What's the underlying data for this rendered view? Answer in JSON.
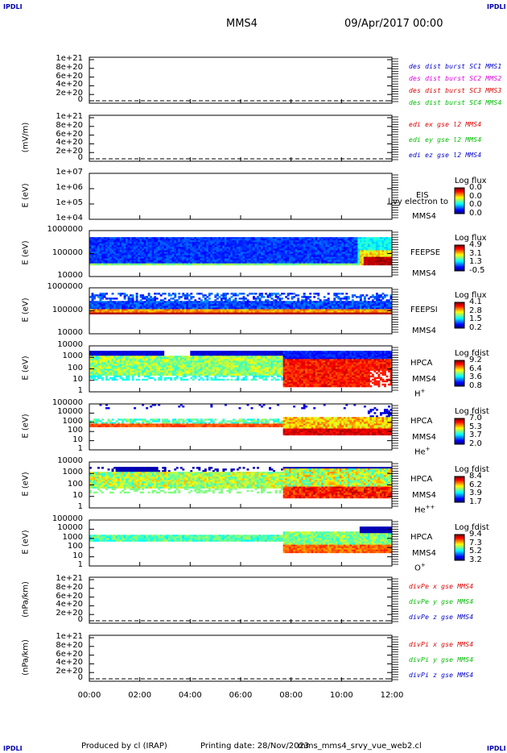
{
  "header": {
    "corner_tl": "IPDLI",
    "corner_tr": "IPDLI",
    "corner_bl": "IPDLI",
    "corner_br": "IPDLI",
    "spacecraft": "MMS4",
    "date": "09/Apr/2017 00:00"
  },
  "chart_data": {
    "type": "multi-panel time series",
    "x_ticks": [
      "00:00",
      "02:00",
      "04:00",
      "06:00",
      "08:00",
      "10:00",
      "12:00"
    ],
    "x_range_hours": [
      0,
      12
    ],
    "panels": [
      {
        "id": "p1",
        "ylabel": "",
        "yticks": [
          "1e+21",
          "8e+20",
          "6e+20",
          "4e+20",
          "2e+20",
          "0"
        ],
        "legend": [
          {
            "text": "des dist burst SC1 MMS1",
            "color": "#0000cc"
          },
          {
            "text": "des dist burst SC2 MMS2",
            "color": "#dd00dd"
          },
          {
            "text": "des dist burst SC3 MMS3",
            "color": "#dd0000"
          },
          {
            "text": "des dist burst SC4 MMS4",
            "color": "#00bb00"
          }
        ]
      },
      {
        "id": "p2",
        "ylabel": "(mV/m)",
        "yticks": [
          "1e+21",
          "8e+20",
          "6e+20",
          "4e+20",
          "2e+20",
          "0"
        ],
        "legend": [
          {
            "text": "edi ex gse l2 MMS4",
            "color": "#dd0000"
          },
          {
            "text": "edi ey gse l2 MMS4",
            "color": "#00bb00"
          },
          {
            "text": "edi ez gse l2 MMS4",
            "color": "#0000cc"
          }
        ]
      },
      {
        "id": "p3",
        "ylabel": "E (eV)",
        "yticks": [
          "1e+07",
          "1e+06",
          "1e+05",
          "1e+04"
        ],
        "instrument": "EIS",
        "sc": "MMS4",
        "overlay": "l,vy electron to",
        "cb_title": "Log flux",
        "cb_ticks": [
          "0.0",
          "0.0",
          "0.0",
          "0.0"
        ]
      },
      {
        "id": "p4",
        "ylabel": "E (eV)",
        "yticks": [
          "1000000",
          "100000",
          "10000"
        ],
        "instrument": "FEEPSE",
        "sc": "MMS4",
        "cb_title": "Log flux",
        "cb_ticks": [
          "4.9",
          "3.1",
          "1.3",
          "-0.5"
        ]
      },
      {
        "id": "p5",
        "ylabel": "E (eV)",
        "yticks": [
          "1000000",
          "100000",
          "10000"
        ],
        "instrument": "FEEPSI",
        "sc": "MMS4",
        "cb_title": "Log flux",
        "cb_ticks": [
          "4.1",
          "2.8",
          "1.5",
          "0.2"
        ]
      },
      {
        "id": "p6",
        "ylabel": "E (eV)",
        "yticks": [
          "10000",
          "1000",
          "100",
          "10",
          "1"
        ],
        "instrument": "HPCA",
        "sc": "MMS4",
        "species": "H",
        "species_sup": "+",
        "cb_title": "Log fdist",
        "cb_ticks": [
          "9.2",
          "6.4",
          "3.6",
          "0.8"
        ]
      },
      {
        "id": "p7",
        "ylabel": "E (eV)",
        "yticks": [
          "100000",
          "10000",
          "1000",
          "100",
          "10",
          "1"
        ],
        "instrument": "HPCA",
        "sc": "MMS4",
        "species": "He",
        "species_sup": "+",
        "cb_title": "Log fdist",
        "cb_ticks": [
          "7.0",
          "5.3",
          "3.7",
          "2.0"
        ]
      },
      {
        "id": "p8",
        "ylabel": "E (eV)",
        "yticks": [
          "10000",
          "1000",
          "100",
          "10",
          "1"
        ],
        "instrument": "HPCA",
        "sc": "MMS4",
        "species": "He",
        "species_sup": "++",
        "cb_title": "Log fdist",
        "cb_ticks": [
          "8.4",
          "6.2",
          "3.9",
          "1.7"
        ]
      },
      {
        "id": "p9",
        "ylabel": "E (eV)",
        "yticks": [
          "100000",
          "10000",
          "1000",
          "100",
          "10",
          "1"
        ],
        "instrument": "HPCA",
        "sc": "MMS4",
        "species": "O",
        "species_sup": "+",
        "cb_title": "Log fdist",
        "cb_ticks": [
          "9.4",
          "7.3",
          "5.2",
          "3.2"
        ]
      },
      {
        "id": "p10",
        "ylabel": "(nPa/km)",
        "yticks": [
          "1e+21",
          "8e+20",
          "6e+20",
          "4e+20",
          "2e+20",
          "0"
        ],
        "legend": [
          {
            "text": "divPe x gse MMS4",
            "color": "#dd0000"
          },
          {
            "text": "divPe y gse MMS4",
            "color": "#00bb00"
          },
          {
            "text": "divPe z gse MMS4",
            "color": "#0000cc"
          }
        ]
      },
      {
        "id": "p11",
        "ylabel": "(nPa/km)",
        "yticks": [
          "1e+21",
          "8e+20",
          "6e+20",
          "4e+20",
          "2e+20",
          "0"
        ],
        "legend": [
          {
            "text": "divPi x gse MMS4",
            "color": "#dd0000"
          },
          {
            "text": "divPi y gse MMS4",
            "color": "#00bb00"
          },
          {
            "text": "divPi z gse MMS4",
            "color": "#0000cc"
          }
        ]
      }
    ]
  },
  "footer": {
    "produced": "Produced by cl (IRAP)",
    "printing": "Printing date: 28/Nov/2023",
    "script": "mms_mms4_srvy_vue_web2.cl"
  }
}
